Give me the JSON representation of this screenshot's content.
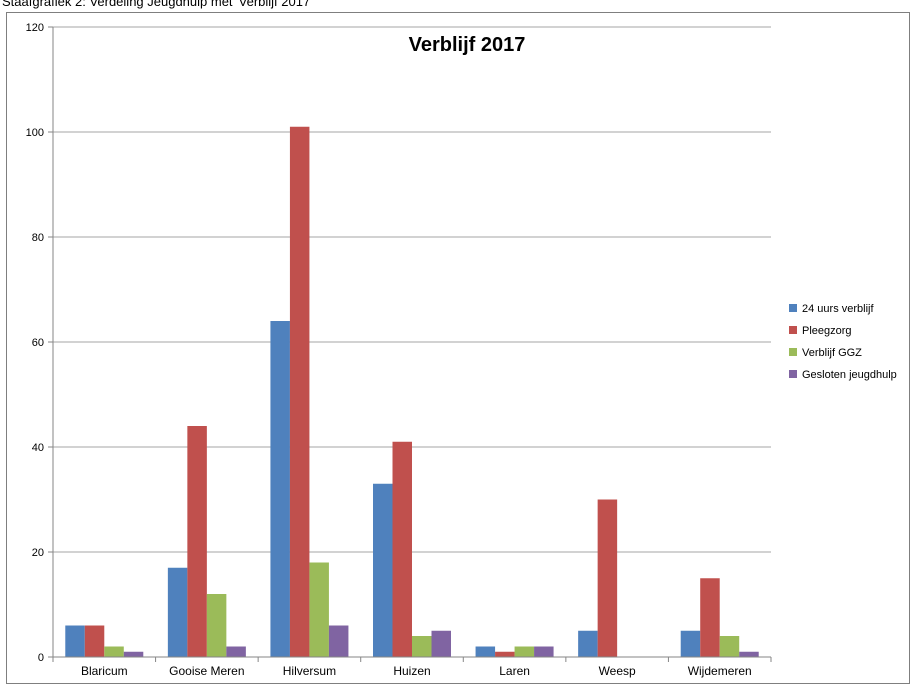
{
  "caption": "Staafgrafiek 2: Verdeling Jeugdhulp met 'Verblijf 2017",
  "chart_data": {
    "type": "bar",
    "title": "Verblijf 2017",
    "xlabel": "",
    "ylabel": "",
    "ylim": [
      0,
      120
    ],
    "yticks": [
      0,
      20,
      40,
      60,
      80,
      100,
      120
    ],
    "grid": true,
    "legend_position": "right",
    "categories": [
      "Blaricum",
      "Gooise Meren",
      "Hilversum",
      "Huizen",
      "Laren",
      "Weesp",
      "Wijdemeren"
    ],
    "series": [
      {
        "name": "24 uurs verblijf",
        "color": "#4f81bd",
        "values": [
          6,
          17,
          64,
          33,
          2,
          5,
          5
        ]
      },
      {
        "name": "Pleegzorg",
        "color": "#c0504d",
        "values": [
          6,
          44,
          101,
          41,
          1,
          30,
          15
        ]
      },
      {
        "name": "Verblijf GGZ",
        "color": "#9bbb59",
        "values": [
          2,
          12,
          18,
          4,
          2,
          0,
          4
        ]
      },
      {
        "name": "Gesloten jeugdhulp",
        "color": "#8064a2",
        "values": [
          1,
          2,
          6,
          5,
          2,
          0,
          1
        ]
      }
    ]
  }
}
